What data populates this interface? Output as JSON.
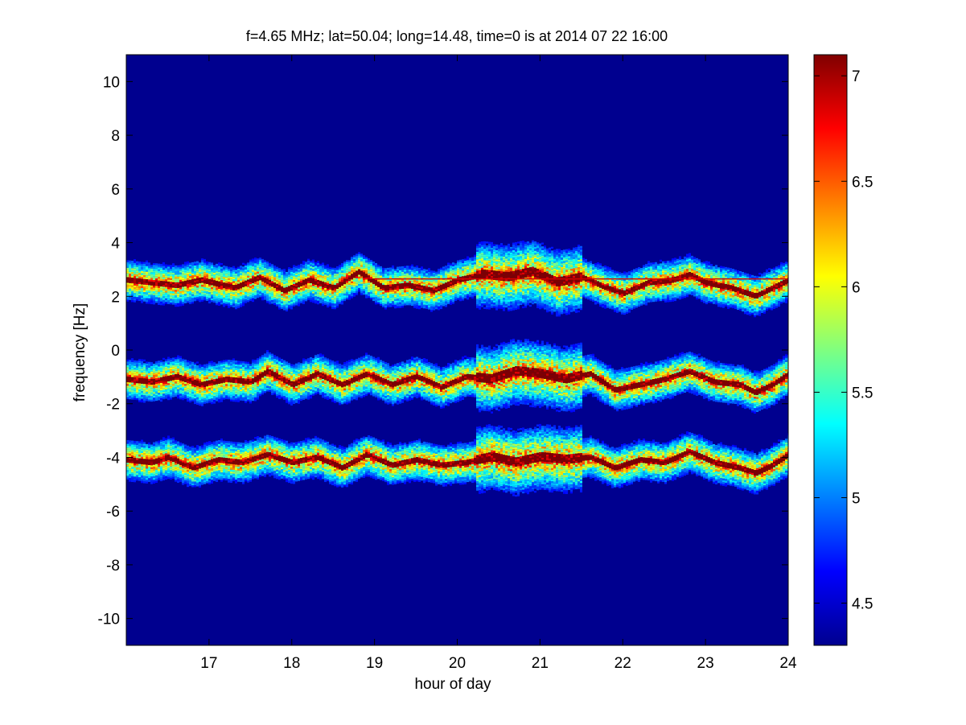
{
  "chart_data": {
    "type": "heatmap",
    "title": "f=4.65 MHz;  lat=50.04; long=14.48, time=0 is at 2014 07 22 16:00",
    "xlabel": "hour of day",
    "ylabel": "frequency [Hz]",
    "xlim": [
      16.0,
      24.0
    ],
    "ylim": [
      -11,
      11
    ],
    "x_ticks": [
      17,
      18,
      19,
      20,
      21,
      22,
      23,
      24
    ],
    "y_ticks": [
      -10,
      -8,
      -6,
      -4,
      -2,
      0,
      2,
      4,
      6,
      8,
      10
    ],
    "colorbar": {
      "colormap": "jet",
      "range": [
        4.3,
        7.1
      ],
      "ticks": [
        4.5,
        5,
        5.5,
        6,
        6.5,
        7
      ]
    },
    "background_value": 4.3,
    "grid": false,
    "bands": [
      {
        "center_hz": [
          [
            16.0,
            2.6
          ],
          [
            16.3,
            2.5
          ],
          [
            16.6,
            2.4
          ],
          [
            16.9,
            2.6
          ],
          [
            17.3,
            2.3
          ],
          [
            17.6,
            2.7
          ],
          [
            17.9,
            2.2
          ],
          [
            18.2,
            2.6
          ],
          [
            18.5,
            2.3
          ],
          [
            18.8,
            2.9
          ],
          [
            19.1,
            2.3
          ],
          [
            19.4,
            2.4
          ],
          [
            19.7,
            2.2
          ],
          [
            20.0,
            2.6
          ],
          [
            20.3,
            2.8
          ],
          [
            20.6,
            2.7
          ],
          [
            20.9,
            2.9
          ],
          [
            21.2,
            2.5
          ],
          [
            21.5,
            2.7
          ],
          [
            21.8,
            2.3
          ],
          [
            22.0,
            2.1
          ],
          [
            22.3,
            2.5
          ],
          [
            22.6,
            2.6
          ],
          [
            22.8,
            2.8
          ],
          [
            23.0,
            2.5
          ],
          [
            23.3,
            2.3
          ],
          [
            23.6,
            2.0
          ],
          [
            23.8,
            2.3
          ],
          [
            24.0,
            2.6
          ]
        ],
        "constant_line_hz": 2.65
      },
      {
        "center_hz": [
          [
            16.0,
            -1.1
          ],
          [
            16.3,
            -1.2
          ],
          [
            16.6,
            -1.0
          ],
          [
            16.9,
            -1.3
          ],
          [
            17.2,
            -1.1
          ],
          [
            17.5,
            -1.2
          ],
          [
            17.7,
            -0.8
          ],
          [
            18.0,
            -1.3
          ],
          [
            18.3,
            -0.9
          ],
          [
            18.6,
            -1.3
          ],
          [
            18.9,
            -0.9
          ],
          [
            19.2,
            -1.3
          ],
          [
            19.5,
            -1.0
          ],
          [
            19.8,
            -1.4
          ],
          [
            20.1,
            -1.0
          ],
          [
            20.4,
            -1.1
          ],
          [
            20.7,
            -0.8
          ],
          [
            21.0,
            -0.9
          ],
          [
            21.3,
            -1.1
          ],
          [
            21.6,
            -0.9
          ],
          [
            21.9,
            -1.5
          ],
          [
            22.2,
            -1.3
          ],
          [
            22.5,
            -1.1
          ],
          [
            22.8,
            -0.8
          ],
          [
            23.1,
            -1.2
          ],
          [
            23.4,
            -1.3
          ],
          [
            23.6,
            -1.6
          ],
          [
            23.8,
            -1.3
          ],
          [
            24.0,
            -0.9
          ]
        ]
      },
      {
        "center_hz": [
          [
            16.0,
            -4.1
          ],
          [
            16.3,
            -4.2
          ],
          [
            16.5,
            -4.0
          ],
          [
            16.8,
            -4.4
          ],
          [
            17.1,
            -4.1
          ],
          [
            17.4,
            -4.2
          ],
          [
            17.7,
            -3.9
          ],
          [
            18.0,
            -4.2
          ],
          [
            18.3,
            -4.0
          ],
          [
            18.6,
            -4.4
          ],
          [
            18.9,
            -3.9
          ],
          [
            19.2,
            -4.3
          ],
          [
            19.5,
            -4.1
          ],
          [
            19.8,
            -4.3
          ],
          [
            20.1,
            -4.2
          ],
          [
            20.4,
            -4.0
          ],
          [
            20.7,
            -4.2
          ],
          [
            21.0,
            -4.0
          ],
          [
            21.3,
            -4.1
          ],
          [
            21.6,
            -4.0
          ],
          [
            21.9,
            -4.4
          ],
          [
            22.2,
            -4.1
          ],
          [
            22.5,
            -4.2
          ],
          [
            22.8,
            -3.8
          ],
          [
            23.1,
            -4.2
          ],
          [
            23.4,
            -4.4
          ],
          [
            23.6,
            -4.6
          ],
          [
            23.8,
            -4.3
          ],
          [
            24.0,
            -3.9
          ]
        ]
      }
    ],
    "enhanced_activity_hours": [
      20.2,
      21.5
    ]
  }
}
